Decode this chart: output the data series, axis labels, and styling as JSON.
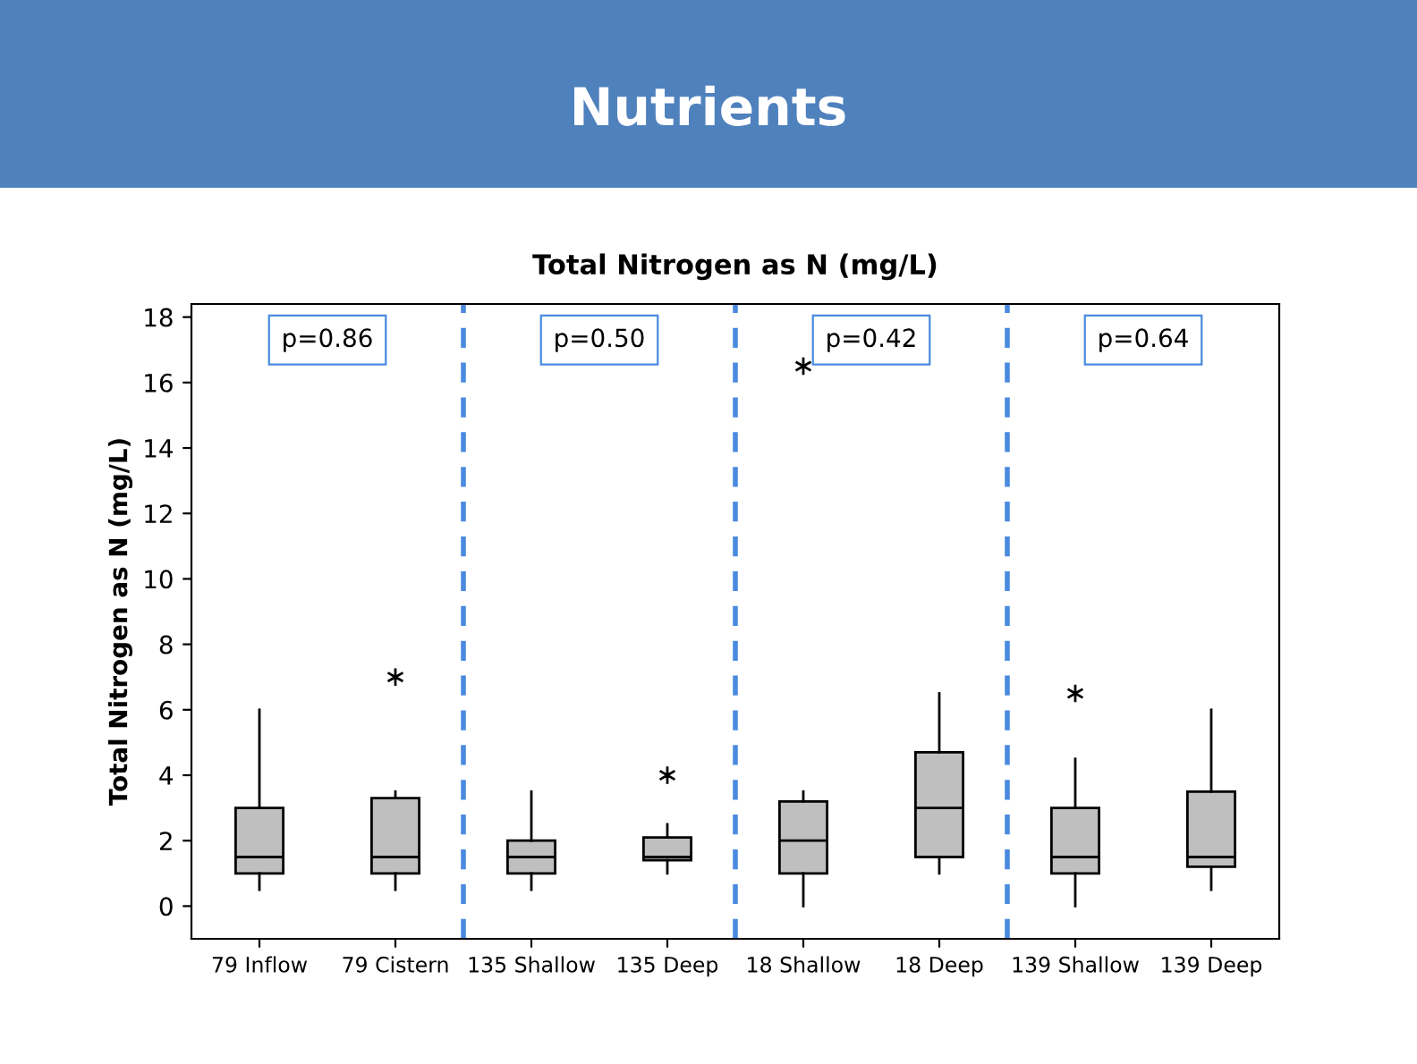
{
  "chart_data": {
    "type": "box",
    "title": "Nutrients",
    "subtitle": "Total Nitrogen as N (mg/L)",
    "ylabel": "Total Nitrogen as N (mg/L)",
    "categories": [
      "79 Inflow",
      "79 Cistern",
      "135 Shallow",
      "135 Deep",
      "18 Shallow",
      "18 Deep",
      "139 Shallow",
      "139 Deep"
    ],
    "boxes": [
      {
        "low": 0.5,
        "q1": 1,
        "median": 1.5,
        "q3": 3,
        "high": 6
      },
      {
        "low": 0.5,
        "q1": 1,
        "median": 1.5,
        "q3": 3.3,
        "high": 3.5,
        "outliers": [
          7
        ]
      },
      {
        "low": 0.5,
        "q1": 1,
        "median": 1.5,
        "q3": 2,
        "high": 3.5
      },
      {
        "low": 1,
        "q1": 1.4,
        "median": 1.5,
        "q3": 2.1,
        "high": 2.5,
        "outliers": [
          4
        ]
      },
      {
        "low": 0,
        "q1": 1,
        "median": 2,
        "q3": 3.2,
        "high": 3.5,
        "outliers": [
          16.5
        ]
      },
      {
        "low": 1,
        "q1": 1.5,
        "median": 3,
        "q3": 4.7,
        "high": 6.5
      },
      {
        "low": 0,
        "q1": 1,
        "median": 1.5,
        "q3": 3,
        "high": 4.5,
        "outliers": [
          6.5
        ]
      },
      {
        "low": 0.5,
        "q1": 1.2,
        "median": 1.5,
        "q3": 3.5,
        "high": 6
      }
    ],
    "color": "#bfbfbf",
    "ylim": [
      -1,
      18.4
    ],
    "yticks": [
      0,
      2,
      4,
      6,
      8,
      10,
      12,
      14,
      16,
      18
    ],
    "annotations": [
      "p=0.86",
      "p=0.50",
      "p=0.42",
      "p=0.64"
    ],
    "grid": false,
    "legend": false
  }
}
